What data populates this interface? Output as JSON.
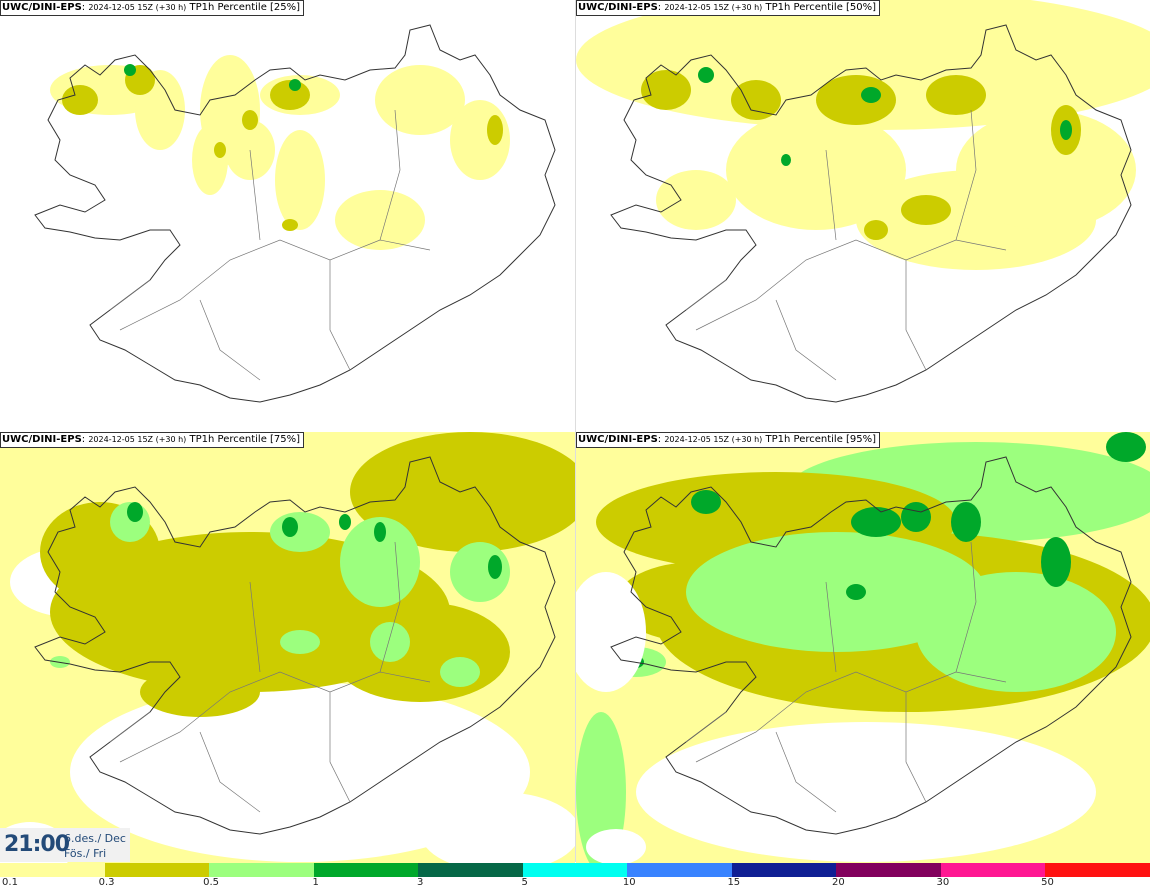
{
  "panels": [
    {
      "model": "UWC/DINI-EPS",
      "run": "2024-12-05 15Z (+30 h)",
      "field": "TP1h Percentile [25%]"
    },
    {
      "model": "UWC/DINI-EPS",
      "run": "2024-12-05 15Z (+30 h)",
      "field": "TP1h Percentile [50%]"
    },
    {
      "model": "UWC/DINI-EPS",
      "run": "2024-12-05 15Z (+30 h)",
      "field": "TP1h Percentile [75%]"
    },
    {
      "model": "UWC/DINI-EPS",
      "run": "2024-12-05 15Z (+30 h)",
      "field": "TP1h Percentile [95%]"
    }
  ],
  "valid_time": {
    "time": "21:00",
    "date": "6.des./ Dec",
    "day": "Fös./ Fri"
  },
  "legend": {
    "labels": [
      "0.1",
      "0.3",
      "0.5",
      "1",
      "3",
      "5",
      "10",
      "15",
      "20",
      "30",
      "50"
    ],
    "colors": [
      "#fffe9b",
      "#cccc00",
      "#9cff7e",
      "#00a82a",
      "#056847",
      "#00fff0",
      "#3883ff",
      "#0f1f94",
      "#82005d",
      "#ff1792",
      "#ff1111"
    ]
  },
  "field_colors": {
    "light_yellow": "#fffe9b",
    "olive": "#cccc00",
    "light_green": "#9cff7e",
    "green": "#00a82a"
  }
}
